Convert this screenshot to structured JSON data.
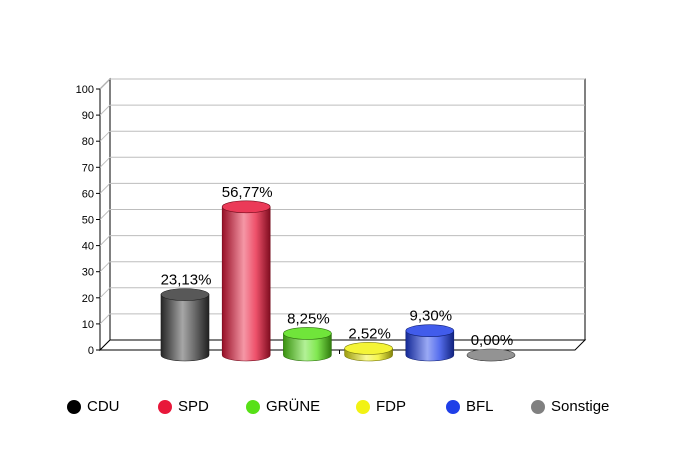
{
  "chart_data": {
    "type": "bar",
    "style": "3d-cylinder",
    "categories": [
      "CDU",
      "SPD",
      "GRÜNE",
      "FDP",
      "BFL",
      "Sonstige"
    ],
    "values": [
      23.13,
      56.77,
      8.25,
      2.52,
      9.3,
      0.0
    ],
    "value_labels": [
      "23,13%",
      "56,77%",
      "8,25%",
      "2,52%",
      "9,30%",
      "0,00%"
    ],
    "colors": [
      "#000000",
      "#e8173a",
      "#57e017",
      "#f2f214",
      "#1f3fe8",
      "#808080"
    ],
    "yticks": [
      "0",
      "10",
      "20",
      "30",
      "40",
      "50",
      "60",
      "70",
      "80",
      "90",
      "100"
    ],
    "ylim": [
      0,
      100
    ],
    "grid": true,
    "legend_position": "bottom"
  }
}
